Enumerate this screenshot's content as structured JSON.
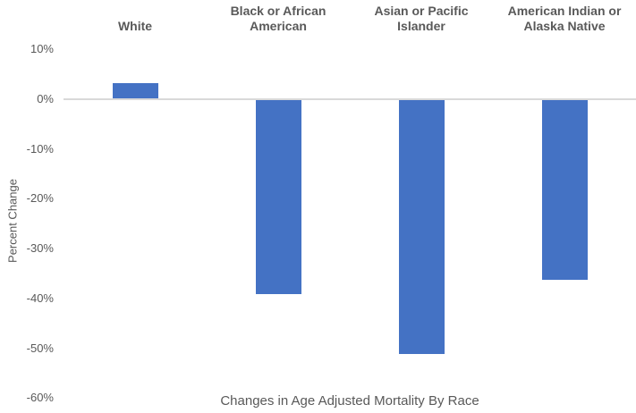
{
  "chart_data": {
    "type": "bar",
    "title": "Changes in Age Adjusted Mortality By Race",
    "ylabel": "Percent Change",
    "categories": [
      "White",
      "Black or African American",
      "Asian or Pacific Islander",
      "American Indian or Alaska Native"
    ],
    "category_lines": [
      [
        "White"
      ],
      [
        "Black or African",
        "American"
      ],
      [
        "Asian or Pacific",
        "Islander"
      ],
      [
        "American Indian or",
        "Alaska Native"
      ]
    ],
    "values": [
      3,
      -39,
      -51,
      -36
    ],
    "value_unit": "%",
    "yticks": [
      10,
      0,
      -10,
      -20,
      -30,
      -40,
      -50,
      -60
    ],
    "ytick_labels": [
      "10%",
      "0%",
      "-10%",
      "-20%",
      "-30%",
      "-40%",
      "-50%",
      "-60%"
    ],
    "ylim": [
      -60,
      10
    ],
    "grid": "zero-baseline-only",
    "legend": "none",
    "bar_color": "#4472C4",
    "axis_line_color": "#D9D9D9",
    "text_color": "#595959"
  }
}
